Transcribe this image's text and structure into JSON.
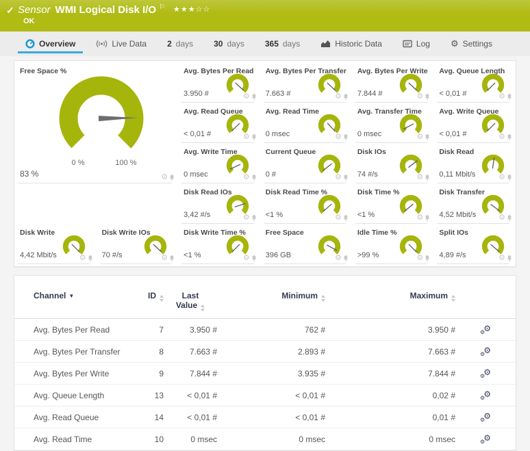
{
  "colors": {
    "header_green": "#b0bb13",
    "gauge_green": "#a6b50b",
    "active_tab_blue": "#38aadd",
    "table_header_navy": "#333a52"
  },
  "header": {
    "check_icon": "✓",
    "kind_label": "Sensor",
    "title": "WMI Logical Disk I/O",
    "flag_icon": "⚐",
    "stars": "★★★☆☆",
    "status": "OK"
  },
  "tabs": {
    "overview": {
      "label": "Overview"
    },
    "live": {
      "label": "Live Data"
    },
    "d2": {
      "num": "2",
      "unit": "days"
    },
    "d30": {
      "num": "30",
      "unit": "days"
    },
    "d365": {
      "num": "365",
      "unit": "days"
    },
    "historic": {
      "label": "Historic Data"
    },
    "log": {
      "label": "Log"
    },
    "settings": {
      "label": "Settings"
    }
  },
  "big_gauge": {
    "title": "Free Space %",
    "value": "83 %",
    "min_label": "0 %",
    "max_label": "100 %",
    "needle_deg": 89
  },
  "gauges": [
    {
      "title": "Avg. Bytes Per Read",
      "value": "3.950 #",
      "needle_deg": 133
    },
    {
      "title": "Avg. Bytes Per Transfer",
      "value": "7.663 #",
      "needle_deg": 133
    },
    {
      "title": "Avg. Bytes Per Write",
      "value": "7.844 #",
      "needle_deg": 133
    },
    {
      "title": "Avg. Queue Length",
      "value": "< 0,01 #",
      "needle_deg": -135
    },
    {
      "title": "Avg. Read Queue",
      "value": "< 0,01 #",
      "needle_deg": -135
    },
    {
      "title": "Avg. Read Time",
      "value": "0 msec",
      "needle_deg": 137
    },
    {
      "title": "Avg. Transfer Time",
      "value": "0 msec",
      "needle_deg": -118
    },
    {
      "title": "Avg. Write Queue",
      "value": "< 0,01 #",
      "needle_deg": -135
    },
    {
      "title": "Avg. Write Time",
      "value": "0 msec",
      "needle_deg": -115
    },
    {
      "title": "Current Queue",
      "value": "0 #",
      "needle_deg": -128
    },
    {
      "title": "Disk IOs",
      "value": "74 #/s",
      "needle_deg": 52
    },
    {
      "title": "Disk Read",
      "value": "0,11 Mbit/s",
      "needle_deg": 8
    },
    {
      "title": "Disk Read IOs",
      "value": "3,42 #/s",
      "needle_deg": 72
    },
    {
      "title": "Disk Read Time %",
      "value": "<1 %",
      "needle_deg": -132
    },
    {
      "title": "Disk Time %",
      "value": "<1 %",
      "needle_deg": -130
    },
    {
      "title": "Disk Transfer",
      "value": "4,52 Mbit/s",
      "needle_deg": 127
    },
    {
      "title": "Disk Write",
      "value": "4,42 Mbit/s",
      "needle_deg": 135
    },
    {
      "title": "Disk Write IOs",
      "value": "70 #/s",
      "needle_deg": 133
    },
    {
      "title": "Disk Write Time %",
      "value": "<1 %",
      "needle_deg": -135
    },
    {
      "title": "Free Space",
      "value": "396 GB",
      "needle_deg": 118
    },
    {
      "title": "Idle Time %",
      "value": ">99 %",
      "needle_deg": 135
    },
    {
      "title": "Split IOs",
      "value": "4,89 #/s",
      "needle_deg": 131
    }
  ],
  "table": {
    "headers": {
      "channel": "Channel",
      "id": "ID",
      "last": "Last Value",
      "min": "Minimum",
      "max": "Maximum"
    },
    "rows": [
      {
        "channel": "Avg. Bytes Per Read",
        "id": "7",
        "last": "3.950 #",
        "min": "762 #",
        "max": "3.950 #"
      },
      {
        "channel": "Avg. Bytes Per Transfer",
        "id": "8",
        "last": "7.663 #",
        "min": "2.893 #",
        "max": "7.663 #"
      },
      {
        "channel": "Avg. Bytes Per Write",
        "id": "9",
        "last": "7.844 #",
        "min": "3.935 #",
        "max": "7.844 #"
      },
      {
        "channel": "Avg. Queue Length",
        "id": "13",
        "last": "< 0,01 #",
        "min": "< 0,01 #",
        "max": "0,02 #"
      },
      {
        "channel": "Avg. Read Queue",
        "id": "14",
        "last": "< 0,01 #",
        "min": "< 0,01 #",
        "max": "0,01 #"
      },
      {
        "channel": "Avg. Read Time",
        "id": "10",
        "last": "0 msec",
        "min": "0 msec",
        "max": "0 msec"
      }
    ]
  }
}
